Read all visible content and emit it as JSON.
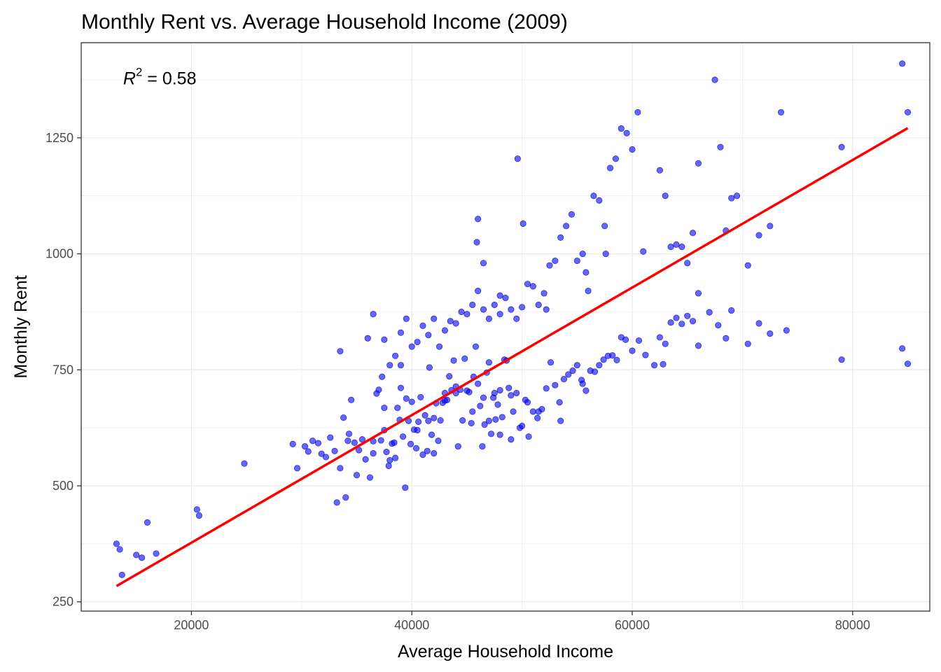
{
  "chart_data": {
    "type": "scatter",
    "title": "Monthly Rent vs. Average Household Income (2009)",
    "xlabel": "Average Household Income",
    "ylabel": "Monthly Rent",
    "xlim": [
      10000,
      87000
    ],
    "ylim": [
      230,
      1455
    ],
    "x_ticks": [
      20000,
      40000,
      60000,
      80000
    ],
    "x_tick_labels": [
      "20000",
      "40000",
      "60000",
      "80000"
    ],
    "y_ticks": [
      250,
      500,
      750,
      1000,
      1250
    ],
    "y_tick_labels": [
      "250",
      "500",
      "750",
      "1000",
      "1250"
    ],
    "grid": true,
    "legend": "none",
    "annotation": {
      "lhs": "R",
      "exponent": "2",
      "rhs": " = 0.58",
      "x": 13800,
      "y": 1365
    },
    "colors": {
      "points": "#0000ff",
      "fit_line": "#ff0000"
    },
    "fit_line": {
      "x": [
        13200,
        85000
      ],
      "y": [
        284,
        1271
      ]
    },
    "series": [
      {
        "x": [
          13200,
          13500,
          13700,
          15000,
          15500,
          16000,
          16800,
          20500,
          20700,
          24800,
          29200,
          29600,
          30300,
          30600,
          31000,
          31500,
          31800,
          32200,
          32600,
          33000,
          33200,
          33500,
          33800,
          34000,
          34200,
          34300,
          34500,
          34800,
          35000,
          35200,
          35500,
          35800,
          36000,
          36200,
          36500,
          36800,
          37000,
          37200,
          37300,
          37500,
          37700,
          37900,
          38000,
          38200,
          38400,
          38500,
          38700,
          38900,
          39000,
          39200,
          39400,
          39500,
          39700,
          39900,
          40000,
          40200,
          40400,
          40600,
          40800,
          41000,
          41200,
          41400,
          41600,
          41800,
          42000,
          42200,
          42400,
          42600,
          42800,
          43000,
          43200,
          43400,
          43600,
          43800,
          44000,
          44200,
          44400,
          44600,
          44800,
          45000,
          45200,
          45400,
          45600,
          45800,
          46000,
          46200,
          46400,
          46600,
          46800,
          47000,
          47200,
          47400,
          47600,
          47800,
          48000,
          48200,
          48400,
          48600,
          48800,
          49000,
          49200,
          49500,
          49800,
          50000,
          50300,
          50600,
          51000,
          51400,
          51800,
          52200,
          52600,
          53000,
          53400,
          53800,
          54200,
          54600,
          55000,
          55400,
          55800,
          56200,
          56600,
          57000,
          57400,
          57800,
          58200,
          58600,
          59000,
          59400,
          60000,
          60600,
          61200,
          62000,
          62500,
          63000,
          63500,
          64000,
          64500,
          65000,
          65500,
          66000,
          67000,
          67800,
          68500,
          69000,
          70500,
          71500,
          72500,
          74000,
          79000,
          84500,
          85000,
          38000,
          40500,
          43000,
          45500,
          47500,
          50500,
          53500,
          36500,
          41500,
          44000,
          46500,
          49000,
          51500,
          55500,
          39000,
          42000,
          47000,
          37500,
          48000
        ],
        "y": [
          375,
          363,
          308,
          351,
          345,
          421,
          354,
          449,
          436,
          548,
          590,
          538,
          585,
          574,
          597,
          592,
          569,
          562,
          604,
          575,
          464,
          538,
          647,
          475,
          597,
          612,
          685,
          593,
          523,
          577,
          600,
          557,
          818,
          518,
          596,
          699,
          707,
          598,
          735,
          668,
          573,
          543,
          760,
          591,
          593,
          560,
          668,
          642,
          711,
          606,
          496,
          688,
          640,
          590,
          681,
          621,
          581,
          638,
          691,
          567,
          652,
          575,
          755,
          610,
          646,
          678,
          597,
          641,
          679,
          684,
          685,
          736,
          706,
          770,
          714,
          585,
          707,
          641,
          774,
          705,
          702,
          635,
          735,
          800,
          720,
          672,
          585,
          632,
          744,
          766,
          612,
          690,
          643,
          675,
          706,
          648,
          772,
          770,
          711,
          695,
          660,
          700,
          625,
          629,
          685,
          606,
          660,
          646,
          665,
          710,
          766,
          717,
          680,
          730,
          740,
          748,
          760,
          728,
          705,
          748,
          746,
          760,
          772,
          780,
          781,
          771,
          820,
          815,
          791,
          813,
          782,
          760,
          820,
          806,
          852,
          862,
          849,
          866,
          855,
          802,
          874,
          846,
          818,
          878,
          806,
          850,
          828,
          835,
          772,
          796,
          763,
          555,
          620,
          700,
          660,
          700,
          680,
          640,
          570,
          640,
          700,
          690,
          600,
          660,
          720,
          760,
          570,
          640,
          620,
          610
        ],
        "label": ""
      },
      {
        "x": [
          33500,
          36500,
          37500,
          38500,
          39000,
          39500,
          40000,
          40500,
          41000,
          41500,
          42000,
          42500,
          43000,
          43500,
          44000,
          44500,
          45000,
          45500,
          46000,
          46500,
          47000,
          47500,
          48000,
          48500,
          49000,
          49500,
          50000,
          50500,
          51000,
          51500,
          52000,
          52500,
          53000,
          53500,
          54000,
          54500,
          55000,
          55500,
          56000,
          56500,
          57000,
          57500,
          58000,
          58500,
          59000,
          59500,
          60000,
          60500,
          61000,
          62500,
          63000,
          63500,
          64000,
          64500,
          65000,
          65500,
          66000,
          67500,
          68000,
          68500,
          69000,
          69500,
          70500,
          71500,
          72500,
          73500,
          79000,
          84500,
          85000,
          66000,
          62800,
          57600,
          55800,
          52200,
          50100,
          49600,
          46000,
          45900,
          46500,
          48000
        ],
        "y": [
          790,
          870,
          815,
          780,
          830,
          860,
          800,
          810,
          845,
          825,
          860,
          800,
          835,
          855,
          850,
          875,
          870,
          890,
          920,
          880,
          860,
          890,
          910,
          905,
          880,
          860,
          885,
          935,
          930,
          890,
          915,
          975,
          985,
          1035,
          1060,
          1085,
          985,
          1000,
          920,
          1125,
          1115,
          1060,
          1185,
          1205,
          1270,
          1260,
          1225,
          1305,
          1005,
          1180,
          1125,
          1015,
          1020,
          1015,
          980,
          1045,
          1195,
          1375,
          1230,
          1050,
          1120,
          1125,
          975,
          1040,
          1060,
          1305,
          1230,
          1410,
          1305,
          915,
          762,
          1000,
          960,
          880,
          1065,
          1205,
          1075,
          1025,
          980,
          870
        ],
        "label": ""
      }
    ]
  }
}
